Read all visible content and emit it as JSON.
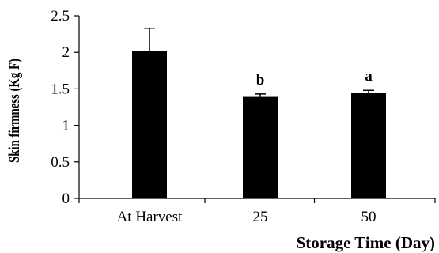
{
  "chart_data": {
    "type": "bar",
    "title": "",
    "xlabel": "Storage Time (Day)",
    "ylabel": "Skin firmness (Kg F)",
    "categories": [
      "At Harvest",
      "25",
      "50"
    ],
    "values": [
      2.02,
      1.39,
      1.45
    ],
    "error": [
      0.31,
      0.04,
      0.03
    ],
    "annotations": [
      "",
      "b",
      "a"
    ],
    "ylim": [
      0,
      2.5
    ],
    "yticks": [
      0,
      0.5,
      1,
      1.5,
      2,
      2.5
    ],
    "ytick_labels": [
      "0",
      "0.5",
      "1",
      "1.5",
      "2",
      "2.5"
    ],
    "grid": false,
    "colors": {
      "bar": "#000000",
      "axis": "#000000"
    }
  }
}
